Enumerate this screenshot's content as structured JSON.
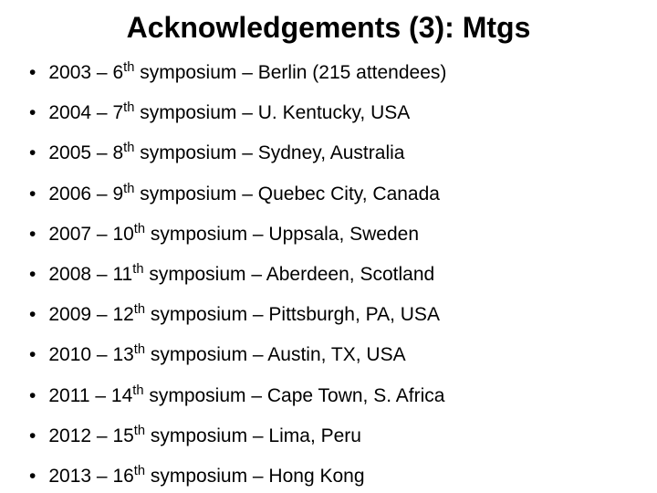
{
  "title": "Acknowledgements (3): Mtgs",
  "word_symposium": " symposium ",
  "separator": " – ",
  "bullet_char": "•",
  "title_fontsize": 32,
  "body_fontsize": 21,
  "background_color": "#ffffff",
  "text_color": "#000000",
  "items": [
    {
      "year": "2003",
      "ord_num": "6",
      "ord_suffix": "th",
      "location": "Berlin (215 attendees)"
    },
    {
      "year": "2004",
      "ord_num": "7",
      "ord_suffix": "th",
      "location": "U. Kentucky, USA"
    },
    {
      "year": "2005",
      "ord_num": "8",
      "ord_suffix": "th",
      "location": "Sydney, Australia"
    },
    {
      "year": "2006",
      "ord_num": "9",
      "ord_suffix": "th",
      "location": "Quebec City, Canada"
    },
    {
      "year": "2007",
      "ord_num": "10",
      "ord_suffix": "th",
      "location": "Uppsala, Sweden"
    },
    {
      "year": "2008",
      "ord_num": "11",
      "ord_suffix": "th",
      "location": "Aberdeen, Scotland"
    },
    {
      "year": "2009",
      "ord_num": "12",
      "ord_suffix": "th",
      "location": "Pittsburgh, PA, USA"
    },
    {
      "year": "2010",
      "ord_num": "13",
      "ord_suffix": "th",
      "location": "Austin, TX, USA"
    },
    {
      "year": "2011",
      "ord_num": "14",
      "ord_suffix": "th",
      "location": "Cape Town, S. Africa"
    },
    {
      "year": "2012",
      "ord_num": "15",
      "ord_suffix": "th",
      "location": "Lima, Peru"
    },
    {
      "year": "2013",
      "ord_num": "16",
      "ord_suffix": "th",
      "location": "Hong Kong"
    }
  ]
}
